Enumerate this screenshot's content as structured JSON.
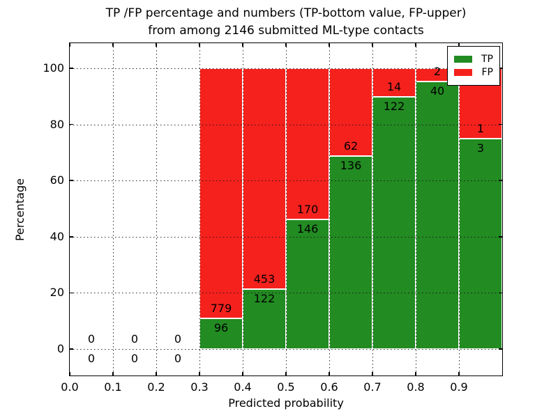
{
  "chart_data": {
    "type": "bar",
    "stacked": true,
    "title_line1": "TP /FP percentage and numbers (TP-bottom value, FP-upper)",
    "title_line2": "from among 2146 submitted ML-type contacts",
    "xlabel": "Predicted probability",
    "ylabel": "Percentage",
    "total_contacts": 2146,
    "xlim": [
      0.0,
      1.0
    ],
    "ylim": [
      -10,
      110
    ],
    "grid": true,
    "grid_style": "dotted",
    "xticks": [
      "0.0",
      "0.1",
      "0.2",
      "0.3",
      "0.4",
      "0.5",
      "0.6",
      "0.7",
      "0.8",
      "0.9"
    ],
    "yticks": [
      "0",
      "20",
      "40",
      "60",
      "80",
      "100"
    ],
    "ytick_values": [
      0,
      20,
      40,
      60,
      80,
      100
    ],
    "xtick_values": [
      0.0,
      0.1,
      0.2,
      0.3,
      0.4,
      0.5,
      0.6,
      0.7,
      0.8,
      0.9
    ],
    "bin_edges": [
      0.0,
      0.1,
      0.2,
      0.3,
      0.4,
      0.5,
      0.6,
      0.7,
      0.8,
      0.9,
      1.0
    ],
    "series": [
      {
        "name": "TP",
        "color": "#228b22",
        "counts": [
          0,
          0,
          0,
          96,
          122,
          146,
          136,
          122,
          40,
          3
        ],
        "percent_heights": [
          0,
          0,
          0,
          10.97,
          21.22,
          46.2,
          68.69,
          89.71,
          95.24,
          75.0
        ]
      },
      {
        "name": "FP",
        "color": "#f5211d",
        "counts": [
          0,
          0,
          0,
          779,
          453,
          170,
          62,
          14,
          2,
          1
        ],
        "percent_heights": [
          0,
          0,
          0,
          89.03,
          78.78,
          53.8,
          31.31,
          10.29,
          4.76,
          25.0
        ]
      }
    ],
    "legend": {
      "location": "upper right",
      "entries": [
        {
          "label": "TP",
          "color": "#228b22"
        },
        {
          "label": "FP",
          "color": "#f5211d"
        }
      ]
    }
  }
}
